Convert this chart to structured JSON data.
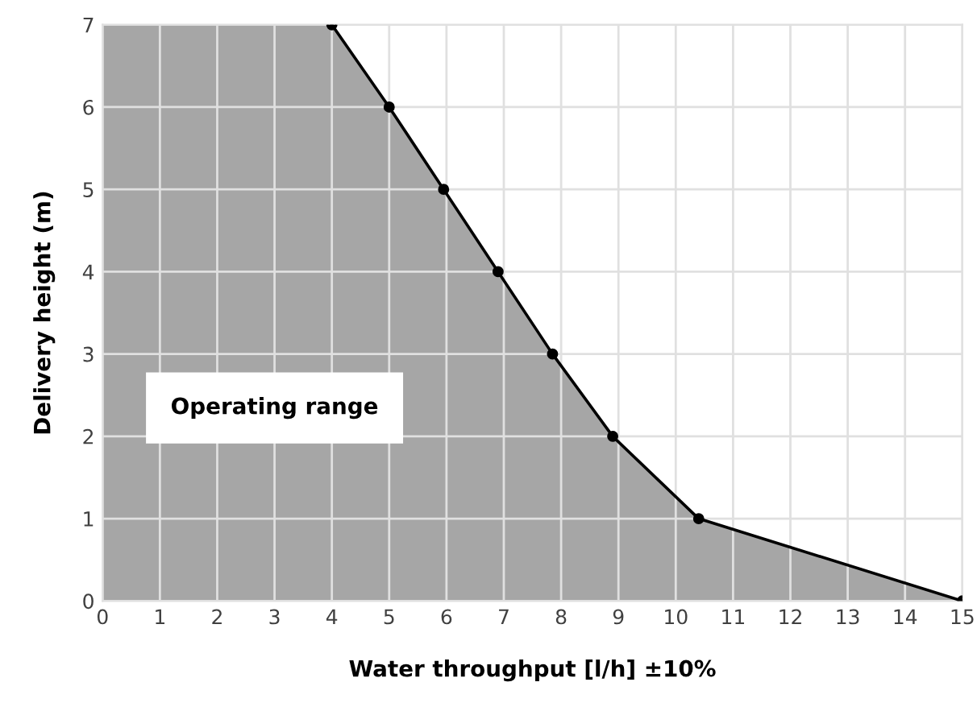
{
  "chart_data": {
    "type": "area",
    "xlabel": "Water throughput [l/h] ±10%",
    "ylabel": "Delivery height (m)",
    "x": [
      4,
      5,
      5.95,
      6.9,
      7.85,
      8.9,
      10.4,
      15
    ],
    "series": [
      {
        "color": "#a6a6a6",
        "values": [
          7,
          6,
          5,
          4,
          3,
          2,
          1,
          0
        ]
      }
    ],
    "bands": [
      {
        "axis": "x",
        "from": 0,
        "to": 4,
        "color": "#a6a6a6"
      }
    ],
    "annotations": [
      "Operating range"
    ],
    "xlim": [
      0,
      15
    ],
    "ylim": [
      0,
      7
    ],
    "xticks": [
      0,
      1,
      2,
      3,
      4,
      5,
      6,
      7,
      8,
      9,
      10,
      11,
      12,
      13,
      14,
      15
    ],
    "yticks": [
      0,
      1,
      2,
      3,
      4,
      5,
      6,
      7
    ],
    "grid": true,
    "marker": "circle",
    "line_style": "solid"
  }
}
